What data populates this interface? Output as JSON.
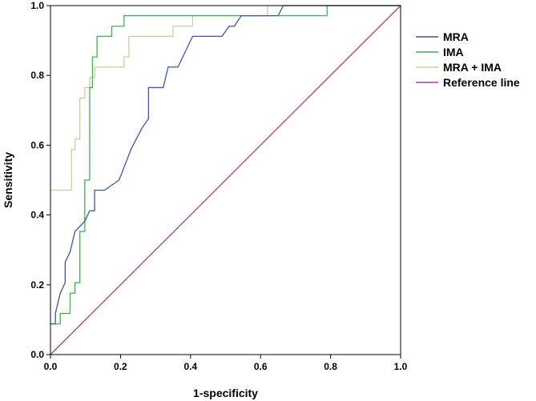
{
  "chart_data": {
    "type": "line",
    "title": "",
    "xlabel": "1-specificity",
    "ylabel": "Sensitivity",
    "xlim": [
      0,
      1
    ],
    "ylim": [
      0,
      1
    ],
    "x_ticks": [
      "0.0",
      "0.2",
      "0.4",
      "0.6",
      "0.8",
      "1.0"
    ],
    "y_ticks": [
      "0.0",
      "0.2",
      "0.4",
      "0.6",
      "0.8",
      "1.0"
    ],
    "grid": false,
    "legend_position": "right",
    "series": [
      {
        "name": "MRA",
        "color": "#3a57a6",
        "points": [
          [
            0.0,
            0.088
          ],
          [
            0.0,
            0.088
          ],
          [
            0.014,
            0.088
          ],
          [
            0.014,
            0.118
          ],
          [
            0.028,
            0.176
          ],
          [
            0.042,
            0.206
          ],
          [
            0.042,
            0.265
          ],
          [
            0.056,
            0.294
          ],
          [
            0.07,
            0.353
          ],
          [
            0.098,
            0.382
          ],
          [
            0.112,
            0.412
          ],
          [
            0.126,
            0.412
          ],
          [
            0.126,
            0.471
          ],
          [
            0.154,
            0.471
          ],
          [
            0.196,
            0.5
          ],
          [
            0.23,
            0.588
          ],
          [
            0.26,
            0.647
          ],
          [
            0.28,
            0.676
          ],
          [
            0.28,
            0.765
          ],
          [
            0.322,
            0.765
          ],
          [
            0.336,
            0.824
          ],
          [
            0.364,
            0.824
          ],
          [
            0.406,
            0.912
          ],
          [
            0.49,
            0.912
          ],
          [
            0.51,
            0.941
          ],
          [
            0.525,
            0.941
          ],
          [
            0.545,
            0.971
          ],
          [
            0.65,
            0.971
          ],
          [
            0.665,
            1.0
          ],
          [
            1.0,
            1.0
          ]
        ]
      },
      {
        "name": "IMA",
        "color": "#3cb44b",
        "points": [
          [
            0.0,
            0.088
          ],
          [
            0.028,
            0.088
          ],
          [
            0.028,
            0.118
          ],
          [
            0.056,
            0.118
          ],
          [
            0.056,
            0.176
          ],
          [
            0.07,
            0.176
          ],
          [
            0.07,
            0.206
          ],
          [
            0.084,
            0.206
          ],
          [
            0.084,
            0.353
          ],
          [
            0.098,
            0.353
          ],
          [
            0.098,
            0.5
          ],
          [
            0.112,
            0.5
          ],
          [
            0.112,
            0.765
          ],
          [
            0.12,
            0.765
          ],
          [
            0.12,
            0.853
          ],
          [
            0.133,
            0.853
          ],
          [
            0.133,
            0.912
          ],
          [
            0.175,
            0.912
          ],
          [
            0.175,
            0.941
          ],
          [
            0.21,
            0.941
          ],
          [
            0.21,
            0.971
          ],
          [
            0.62,
            0.971
          ],
          [
            0.62,
            0.971
          ],
          [
            0.79,
            0.971
          ],
          [
            0.79,
            1.0
          ],
          [
            1.0,
            1.0
          ]
        ]
      },
      {
        "name": "MRA + IMA",
        "color": "#c9cf95",
        "points": [
          [
            0.0,
            0.471
          ],
          [
            0.06,
            0.471
          ],
          [
            0.06,
            0.588
          ],
          [
            0.07,
            0.588
          ],
          [
            0.07,
            0.618
          ],
          [
            0.084,
            0.618
          ],
          [
            0.084,
            0.735
          ],
          [
            0.098,
            0.735
          ],
          [
            0.098,
            0.765
          ],
          [
            0.112,
            0.765
          ],
          [
            0.112,
            0.794
          ],
          [
            0.126,
            0.794
          ],
          [
            0.126,
            0.824
          ],
          [
            0.21,
            0.824
          ],
          [
            0.21,
            0.853
          ],
          [
            0.224,
            0.853
          ],
          [
            0.224,
            0.912
          ],
          [
            0.35,
            0.912
          ],
          [
            0.35,
            0.941
          ],
          [
            0.406,
            0.941
          ],
          [
            0.406,
            0.971
          ],
          [
            0.62,
            0.971
          ],
          [
            0.62,
            1.0
          ],
          [
            1.0,
            1.0
          ]
        ]
      },
      {
        "name": "Reference line",
        "color": "#a040a0",
        "points": [
          [
            0,
            0
          ],
          [
            1,
            1
          ]
        ]
      }
    ]
  }
}
